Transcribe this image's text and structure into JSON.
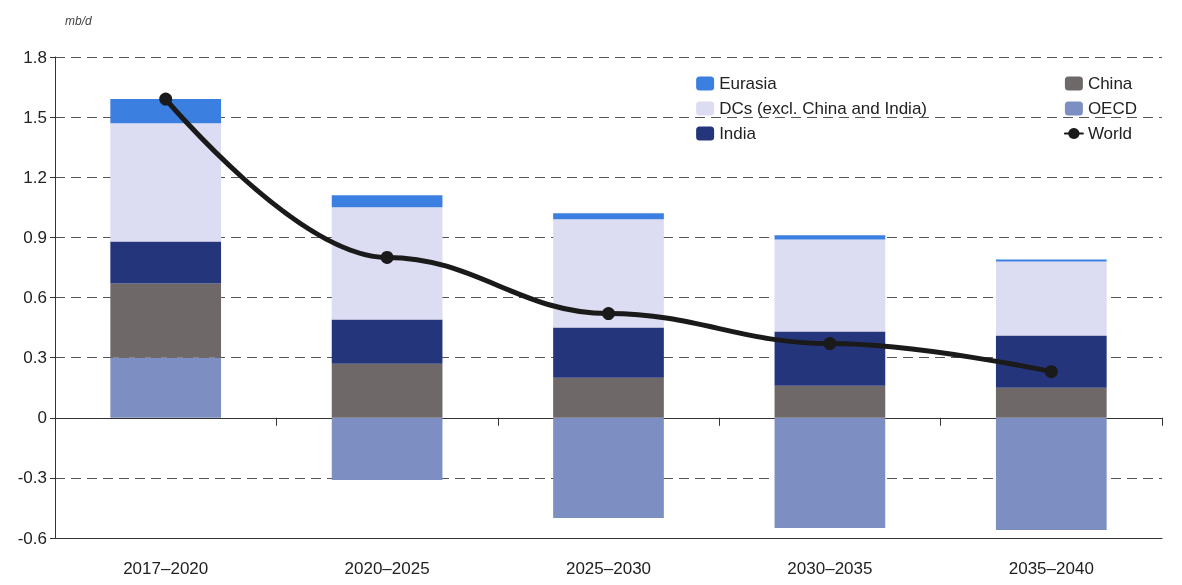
{
  "chart_data": {
    "type": "bar",
    "stacked": true,
    "ylabel": "mb/d",
    "categories": [
      "2017–2020",
      "2020–2025",
      "2025–2030",
      "2030–2035",
      "2035–2040"
    ],
    "series": [
      {
        "name": "OECD",
        "color": "#7d8fc2",
        "values": [
          0.3,
          -0.31,
          -0.5,
          -0.55,
          -0.56
        ]
      },
      {
        "name": "China",
        "color": "#6e6868",
        "values": [
          0.37,
          0.27,
          0.2,
          0.16,
          0.15
        ]
      },
      {
        "name": "India",
        "color": "#25357c",
        "values": [
          0.21,
          0.22,
          0.25,
          0.27,
          0.26
        ]
      },
      {
        "name": "DCs (excl. China and India)",
        "color": "#dcdcf2",
        "values": [
          0.59,
          0.56,
          0.54,
          0.46,
          0.37
        ]
      },
      {
        "name": "Eurasia",
        "color": "#3b7fe0",
        "values": [
          0.12,
          0.06,
          0.03,
          0.02,
          0.01
        ]
      },
      {
        "name": "World",
        "type": "line",
        "color": "#1a1a1a",
        "values": [
          1.59,
          0.8,
          0.52,
          0.37,
          0.23
        ]
      }
    ],
    "ylim": [
      -0.6,
      1.8
    ],
    "yticks": [
      -0.6,
      -0.3,
      0,
      0.3,
      0.6,
      0.9,
      1.2,
      1.5,
      1.8
    ],
    "grid": "y",
    "legend": "top right",
    "marker": "circle",
    "line_style": "solid"
  }
}
